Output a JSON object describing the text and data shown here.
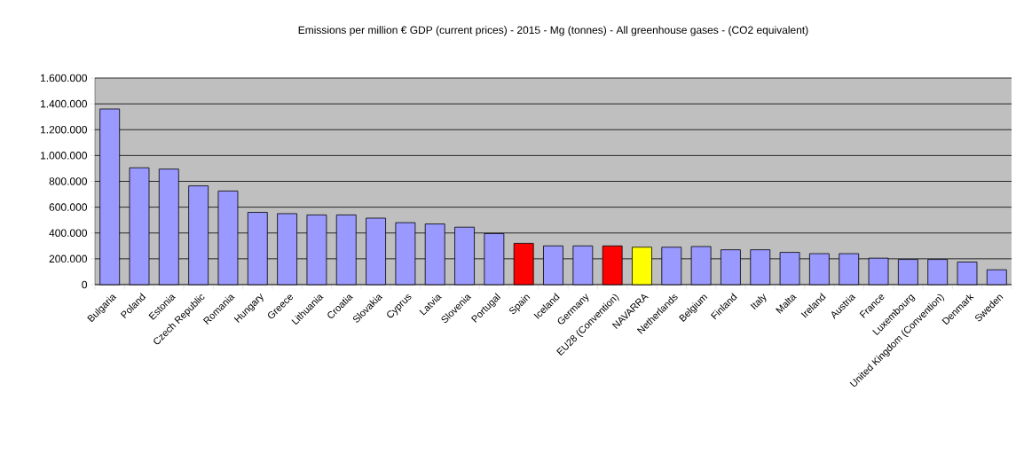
{
  "chart_data": {
    "type": "bar",
    "title": "Emissions per million € GDP (current prices) - 2015 - Mg (tonnes) - All greenhouse gases - (CO2 equivalent)",
    "categories": [
      "Bulgaria",
      "Poland",
      "Estonia",
      "Czech Republic",
      "Romania",
      "Hungary",
      "Greece",
      "Lithuania",
      "Croatia",
      "Slovakia",
      "Cyprus",
      "Latvia",
      "Slovenia",
      "Portugal",
      "Spain",
      "Iceland",
      "Germany",
      "EU28 (Convention)",
      "NAVARRA",
      "Netherlands",
      "Belgium",
      "Finland",
      "Italy",
      "Malta",
      "Ireland",
      "Austria",
      "France",
      "Luxembourg",
      "United Kingdom (Convention)",
      "Denmark",
      "Sweden"
    ],
    "values": [
      1360000,
      905000,
      895000,
      765000,
      725000,
      560000,
      550000,
      540000,
      540000,
      515000,
      480000,
      470000,
      445000,
      395000,
      320000,
      300000,
      300000,
      300000,
      290000,
      290000,
      295000,
      270000,
      270000,
      250000,
      240000,
      240000,
      205000,
      195000,
      195000,
      175000,
      115000
    ],
    "colors": [
      "#9999ff",
      "#9999ff",
      "#9999ff",
      "#9999ff",
      "#9999ff",
      "#9999ff",
      "#9999ff",
      "#9999ff",
      "#9999ff",
      "#9999ff",
      "#9999ff",
      "#9999ff",
      "#9999ff",
      "#9999ff",
      "#ff0000",
      "#9999ff",
      "#9999ff",
      "#ff0000",
      "#ffff00",
      "#9999ff",
      "#9999ff",
      "#9999ff",
      "#9999ff",
      "#9999ff",
      "#9999ff",
      "#9999ff",
      "#9999ff",
      "#9999ff",
      "#9999ff",
      "#9999ff",
      "#9999ff"
    ],
    "ylim": [
      0,
      1600000
    ],
    "yticks": [
      {
        "value": 0,
        "label": "0"
      },
      {
        "value": 200000,
        "label": "200.000"
      },
      {
        "value": 400000,
        "label": "400.000"
      },
      {
        "value": 600000,
        "label": "600.000"
      },
      {
        "value": 800000,
        "label": "800.000"
      },
      {
        "value": 1000000,
        "label": "1.000.000"
      },
      {
        "value": 1200000,
        "label": "1.200.000"
      },
      {
        "value": 1400000,
        "label": "1.400.000"
      },
      {
        "value": 1600000,
        "label": "1.600.000"
      }
    ],
    "grid": "y"
  }
}
